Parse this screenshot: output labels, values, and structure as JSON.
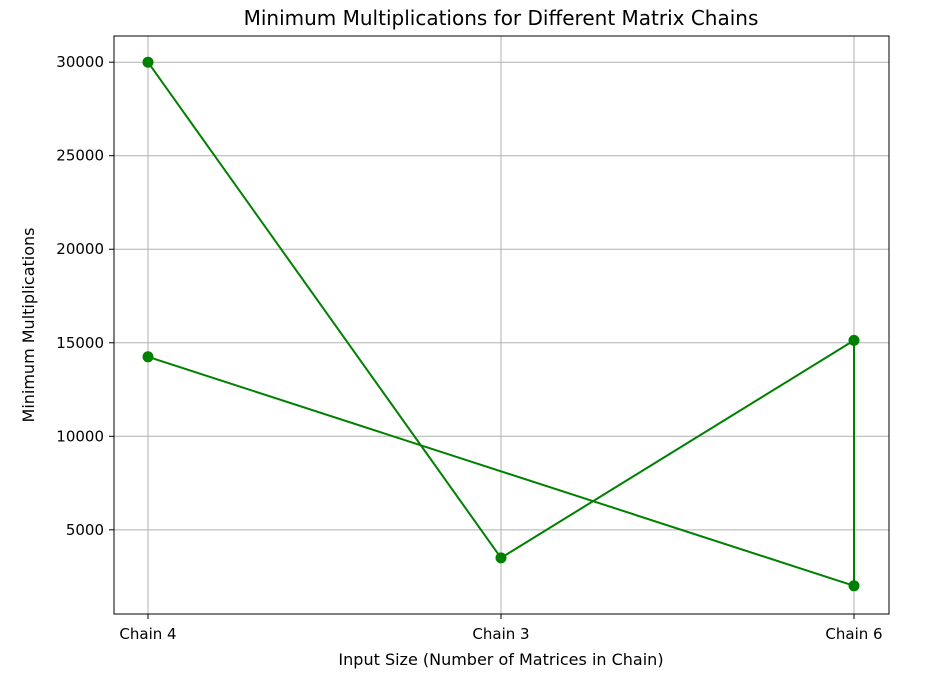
{
  "chart_data": {
    "type": "line",
    "title": "Minimum Multiplications for Different Matrix Chains",
    "xlabel": "Input Size (Number of Matrices in Chain)",
    "ylabel": "Minimum Multiplications",
    "categories": [
      "Chain 4",
      "Chain 3",
      "Chain 6"
    ],
    "points": [
      {
        "x": "Chain 4",
        "y": 30000
      },
      {
        "x": "Chain 3",
        "y": 3500
      },
      {
        "x": "Chain 6",
        "y": 15125
      },
      {
        "x": "Chain 6",
        "y": 2010
      },
      {
        "x": "Chain 4",
        "y": 14250
      }
    ],
    "yticks": [
      5000,
      10000,
      15000,
      20000,
      25000,
      30000
    ],
    "ylim": [
      500,
      31400
    ],
    "grid": true,
    "legend": "none",
    "colors": {
      "line": "#008000",
      "marker": "#008000"
    }
  }
}
